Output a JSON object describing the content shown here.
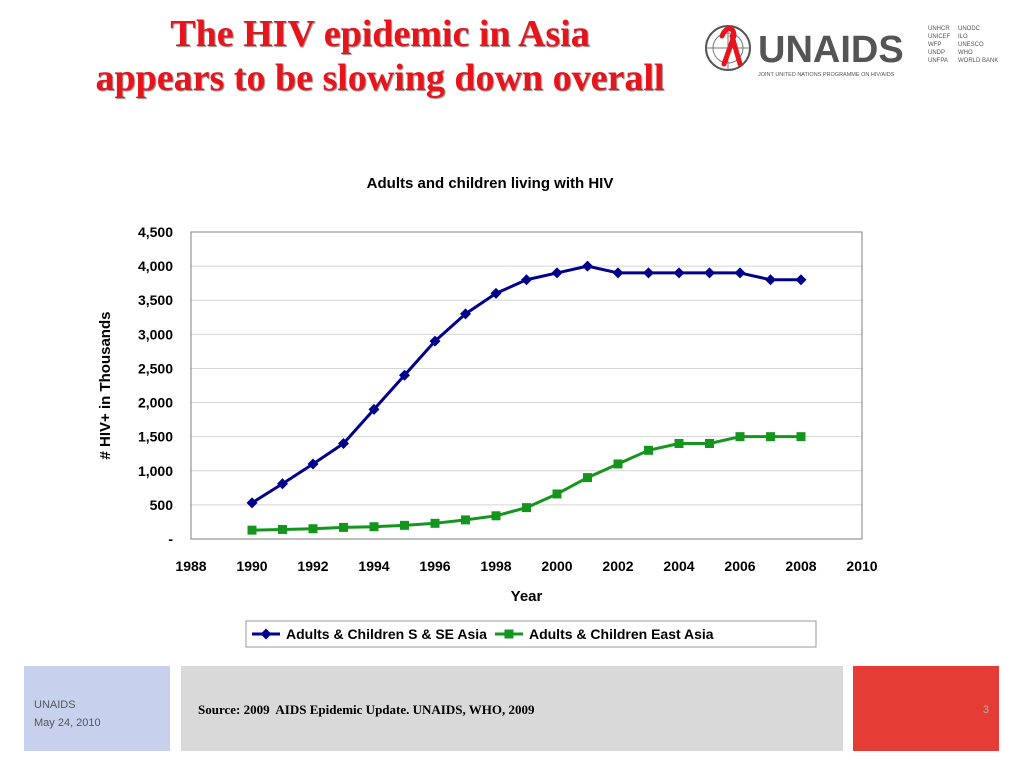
{
  "slide": {
    "title_line1": "The HIV epidemic in Asia",
    "title_line2": "appears to be slowing down overall",
    "source": "Source: 2009  AIDS Epidemic Update. UNAIDS, WHO, 2009",
    "footer_org": "UNAIDS",
    "footer_date": "May 24, 2010",
    "page_number": "3"
  },
  "logo": {
    "text": "UNAIDS",
    "tagline": "JOINT UNITED NATIONS PROGRAMME ON HIV/AIDS",
    "cosponsors_col1": [
      "UNHCR",
      "UNICEF",
      "WFP",
      "UNDP",
      "UNFPA"
    ],
    "cosponsors_col2": [
      "UNODC",
      "ILO",
      "UNESCO",
      "WHO",
      "WORLD BANK"
    ],
    "colors": {
      "dark": "#555555",
      "red": "#e8141c"
    }
  },
  "chart_data": {
    "type": "line",
    "title": "Adults and children living with HIV",
    "xlabel": "Year",
    "ylabel": "# HIV+ in Thousands",
    "xlim": [
      1988,
      2010
    ],
    "ylim": [
      0,
      4500
    ],
    "x_ticks": [
      1988,
      1990,
      1992,
      1994,
      1996,
      1998,
      2000,
      2002,
      2004,
      2006,
      2008,
      2010
    ],
    "y_ticks": [
      0,
      500,
      1000,
      1500,
      2000,
      2500,
      3000,
      3500,
      4000,
      4500
    ],
    "y_tick_labels": [
      "-",
      "500",
      "1,000",
      "1,500",
      "2,000",
      "2,500",
      "3,000",
      "3,500",
      "4,000",
      "4,500"
    ],
    "grid": "horizontal",
    "legend_position": "bottom",
    "x": [
      1990,
      1991,
      1992,
      1993,
      1994,
      1995,
      1996,
      1997,
      1998,
      1999,
      2000,
      2001,
      2002,
      2003,
      2004,
      2005,
      2006,
      2007,
      2008
    ],
    "series": [
      {
        "name": "Adults & Children S & SE Asia",
        "color": "#00008b",
        "marker": "diamond",
        "values": [
          530,
          810,
          1100,
          1400,
          1900,
          2400,
          2900,
          3300,
          3600,
          3800,
          3900,
          4000,
          3900,
          3900,
          3900,
          3900,
          3900,
          3800,
          3800
        ]
      },
      {
        "name": "Adults & Children East Asia",
        "color": "#14961e",
        "marker": "square",
        "values": [
          130,
          140,
          150,
          170,
          180,
          200,
          230,
          280,
          340,
          460,
          660,
          900,
          1100,
          1300,
          1400,
          1400,
          1500,
          1500,
          1500
        ]
      }
    ]
  }
}
